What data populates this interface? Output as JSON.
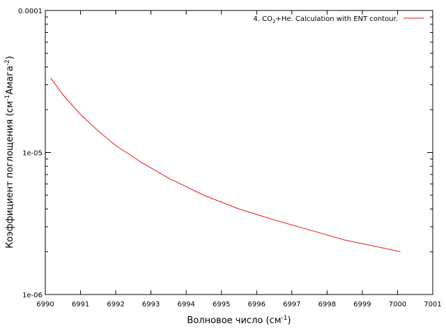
{
  "chart_data": {
    "type": "line",
    "title": "",
    "xlabel": "Волновое число (см",
    "xlabel_sup": "-1",
    "xlabel_tail": ")",
    "ylabel_pre": "Коэффициент поглощения (см",
    "ylabel_sup1": "-1",
    "ylabel_mid": "Амага",
    "ylabel_sup2": "-2",
    "ylabel_tail": ")",
    "xlim": [
      6990,
      7001
    ],
    "ylim": [
      1e-06,
      0.0001
    ],
    "y_scale": "log",
    "grid": false,
    "legend_position": "top-right",
    "x_ticks": [
      "6990",
      "6991",
      "6992",
      "6993",
      "6994",
      "6995",
      "6996",
      "6997",
      "6998",
      "6999",
      "7000",
      "7001"
    ],
    "y_ticks": [
      "1e-06",
      "1e-05",
      "0.0001"
    ],
    "legend": {
      "pre": "4. CO",
      "sub": "2",
      "post": "+He. Calculation with ENT contour."
    },
    "series": [
      {
        "color": "#e31a1c",
        "x": [
          6990.15,
          6990.5,
          6991.0,
          6991.5,
          6992.0,
          6992.7,
          6993.5,
          6994.5,
          6995.5,
          6996.5,
          6997.5,
          6998.5,
          6999.5,
          7000.08
        ],
        "y": [
          3.35e-05,
          2.55e-05,
          1.85e-05,
          1.42e-05,
          1.12e-05,
          8.6e-06,
          6.6e-06,
          5e-06,
          4e-06,
          3.35e-06,
          2.85e-06,
          2.42e-06,
          2.15e-06,
          2e-06
        ]
      }
    ]
  }
}
